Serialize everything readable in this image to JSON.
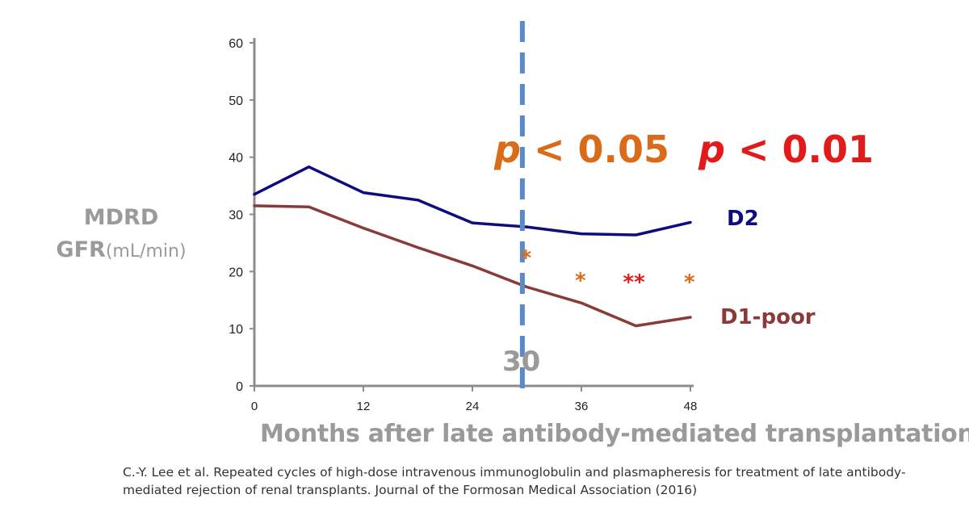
{
  "chart_data": {
    "type": "line",
    "title": "",
    "ylabel": "MDRD GFR",
    "ylabel_unit": "(mL/min)",
    "xlabel": "Months after late antibody-mediated transplantation",
    "xlim": [
      0,
      48
    ],
    "ylim": [
      0,
      60
    ],
    "x_ticks": [
      0,
      12,
      24,
      36,
      48
    ],
    "y_ticks": [
      0,
      10,
      20,
      30,
      40,
      50,
      60
    ],
    "grid": false,
    "series": [
      {
        "name": "D2",
        "color": "#0d0d80",
        "points": [
          [
            0,
            33.5
          ],
          [
            6,
            38.3
          ],
          [
            12,
            33.8
          ],
          [
            18,
            32.5
          ],
          [
            24,
            28.5
          ],
          [
            30,
            27.8
          ],
          [
            36,
            26.6
          ],
          [
            42,
            26.4
          ],
          [
            48,
            28.6
          ]
        ]
      },
      {
        "name": "D1-poor",
        "color": "#8b3a3a",
        "points": [
          [
            0,
            31.5
          ],
          [
            6,
            31.3
          ],
          [
            12,
            27.6
          ],
          [
            18,
            24.2
          ],
          [
            24,
            21.0
          ],
          [
            30,
            17.3
          ],
          [
            36,
            14.5
          ],
          [
            42,
            10.5
          ],
          [
            48,
            12.0
          ]
        ]
      }
    ],
    "reference_line": {
      "x": 29.5,
      "label": "30",
      "color": "#5b8ac7",
      "style": "dashed"
    },
    "annotations": {
      "p_value_1": {
        "symbol": "p",
        "text": "< 0.05",
        "color": "#d96b1a"
      },
      "p_value_2": {
        "symbol": "p",
        "text": "< 0.01",
        "color": "#e21a1a"
      },
      "significance_marks": [
        {
          "x": 30,
          "y": 22.5,
          "text": "*",
          "color": "#d96b1a"
        },
        {
          "x": 36,
          "y": 18.5,
          "text": "*",
          "color": "#d96b1a"
        },
        {
          "x": 42,
          "y": 18.2,
          "text": "**",
          "color": "#e21a1a"
        },
        {
          "x": 48,
          "y": 18.2,
          "text": "*",
          "color": "#d96b1a"
        }
      ]
    }
  },
  "citation": "C.-Y. Lee et al. Repeated cycles of high-dose intravenous immunoglobulin and plasmapheresis for treatment of late antibody-mediated rejection of renal transplants. Journal of the Formosan Medical Association (2016)",
  "axis_color": "#8c8c8c",
  "text_gray": "#9a9a9a"
}
